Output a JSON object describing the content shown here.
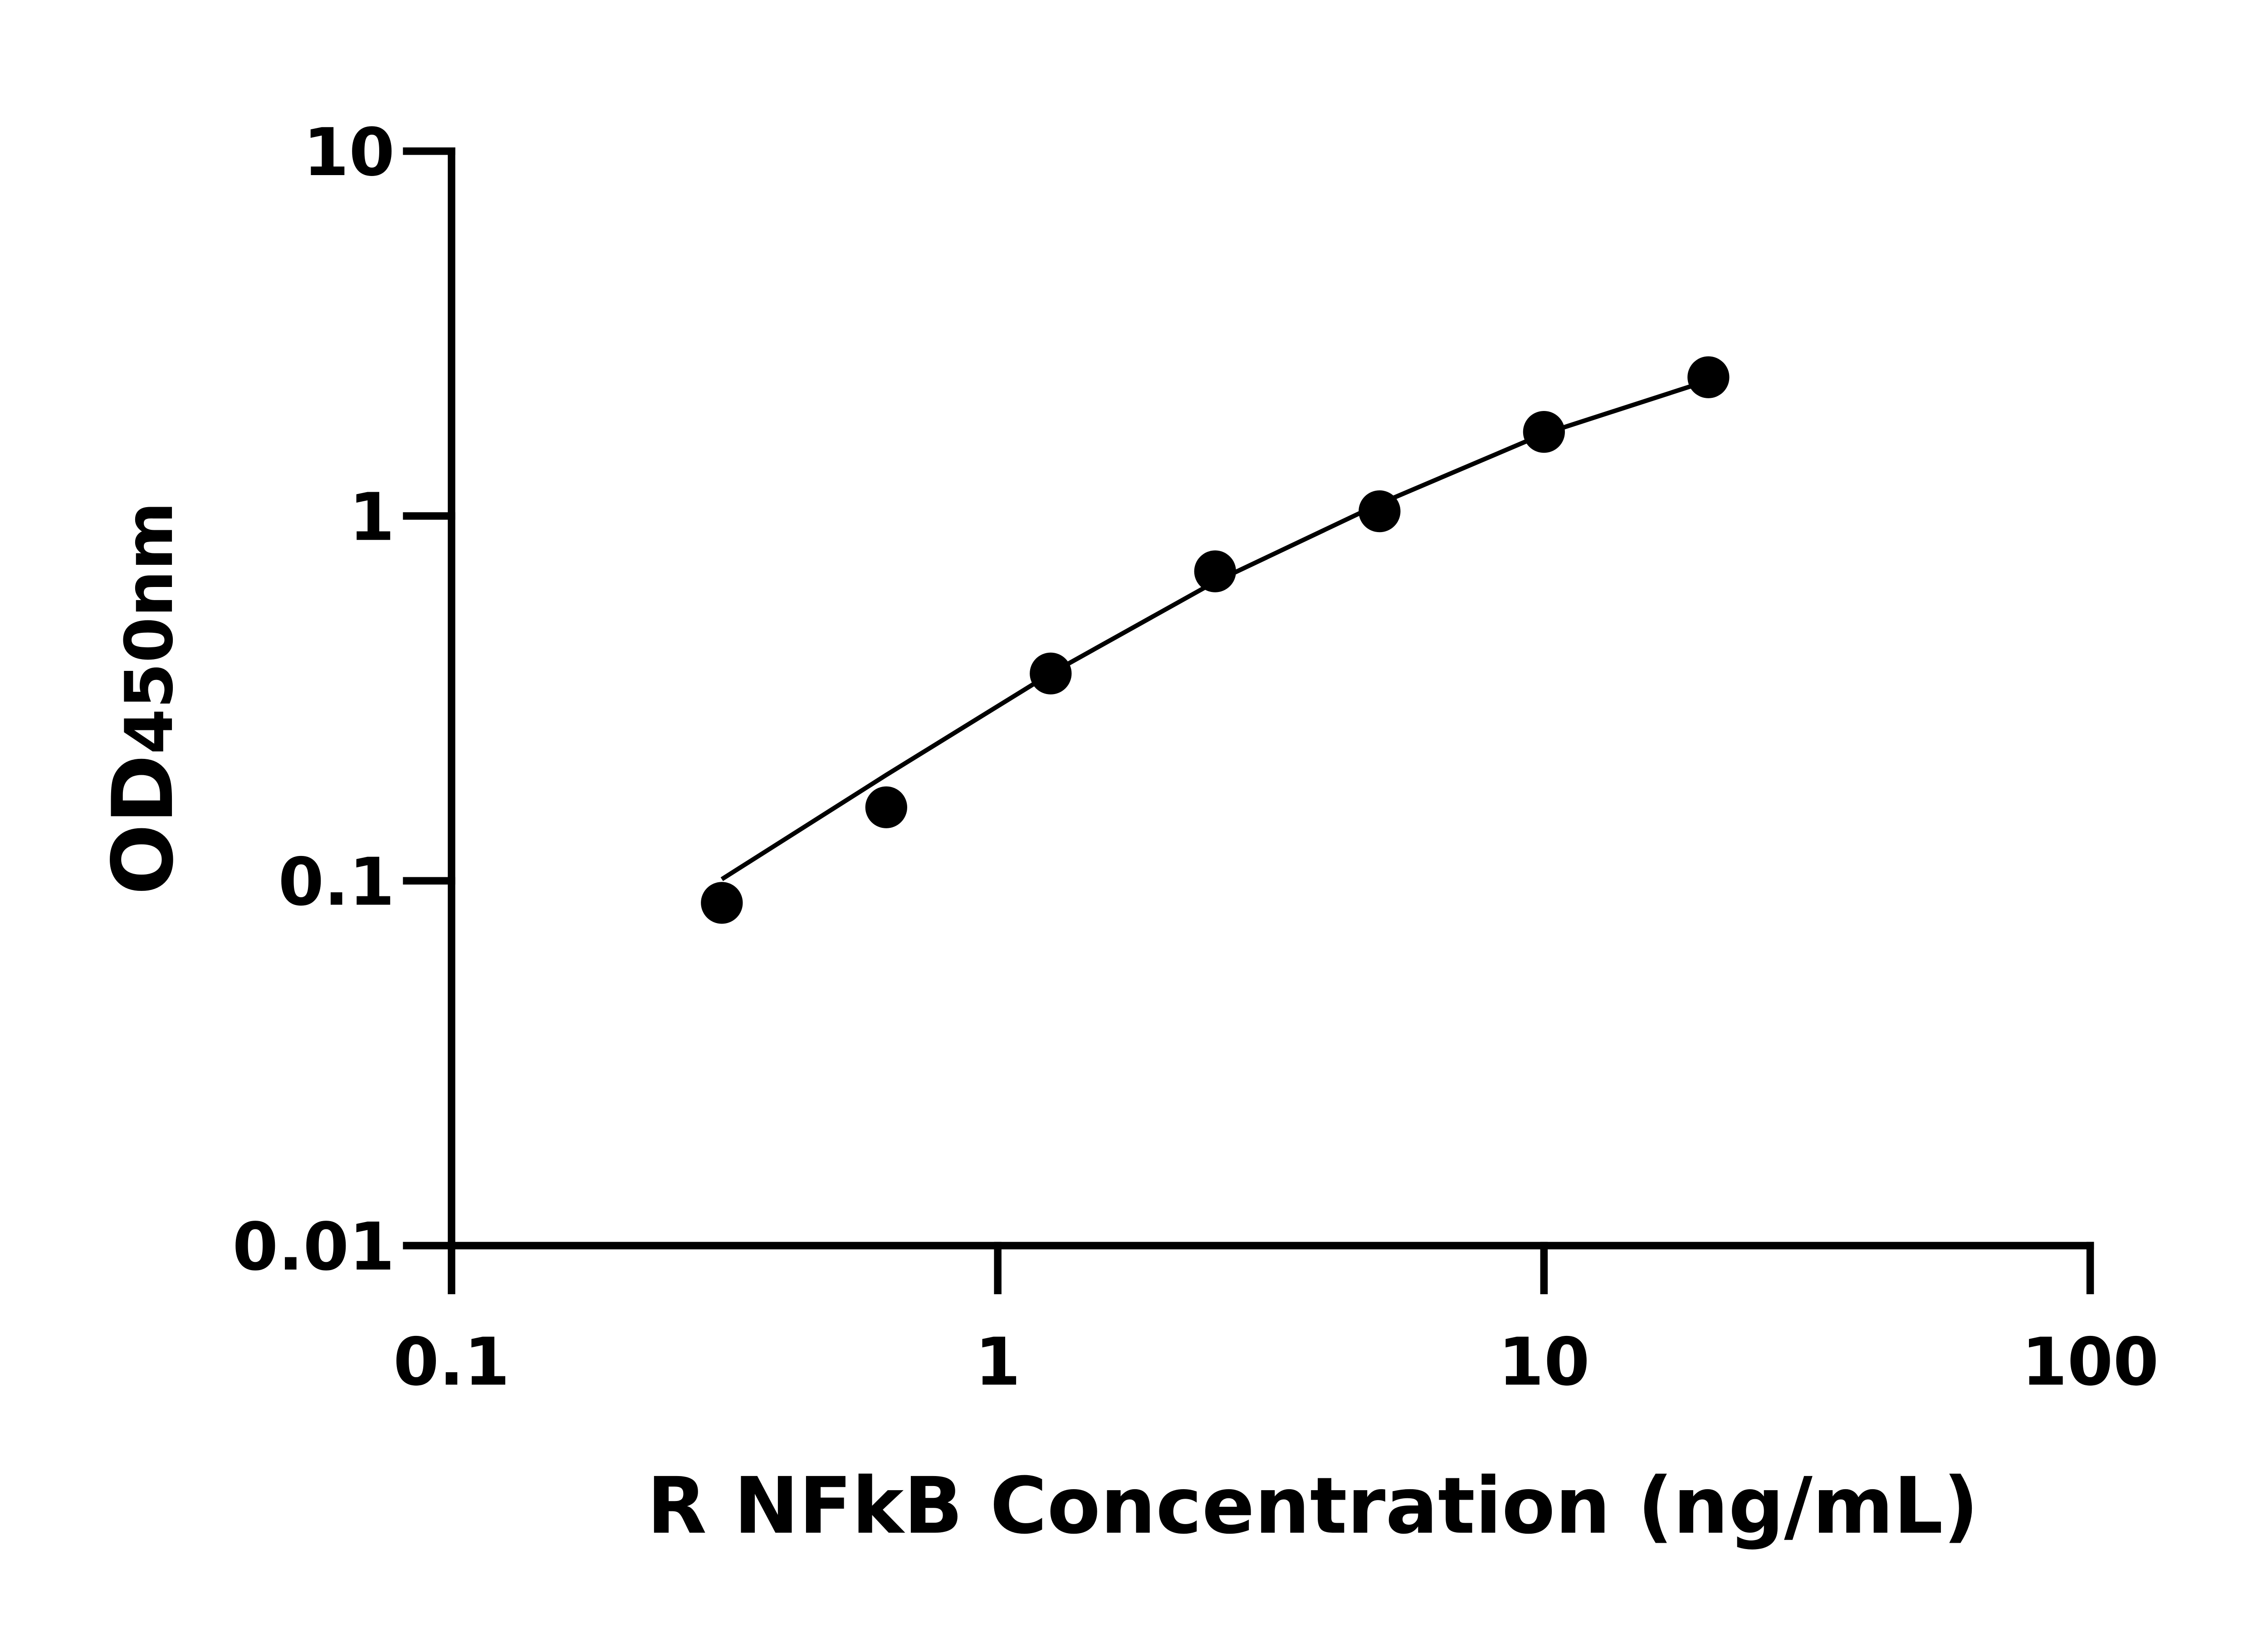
{
  "chart_data": {
    "type": "scatter",
    "x_label": "R NFkB Concentration (ng/mL)",
    "y_label": "OD",
    "y_label_sub": "450nm",
    "x_log": true,
    "y_log": true,
    "xlim": [
      0.1,
      100
    ],
    "xticks": [
      0.1,
      1,
      10,
      100
    ],
    "ylim": [
      0.01,
      10
    ],
    "yticks": [
      0.01,
      0.1,
      1,
      10
    ],
    "grid": false,
    "series": [
      {
        "type": "scatter",
        "color": "#000000",
        "x": [
          0.3125,
          0.625,
          1.25,
          2.5,
          5,
          10,
          20
        ],
        "values": [
          0.087,
          0.159,
          0.37,
          0.705,
          1.03,
          1.7,
          2.4
        ]
      },
      {
        "type": "line",
        "color": "#000000",
        "x": [
          0.3125,
          0.625,
          1.25,
          2.5,
          5,
          10,
          20
        ],
        "values": [
          0.101,
          0.195,
          0.37,
          0.66,
          1.08,
          1.68,
          2.35
        ]
      }
    ]
  }
}
